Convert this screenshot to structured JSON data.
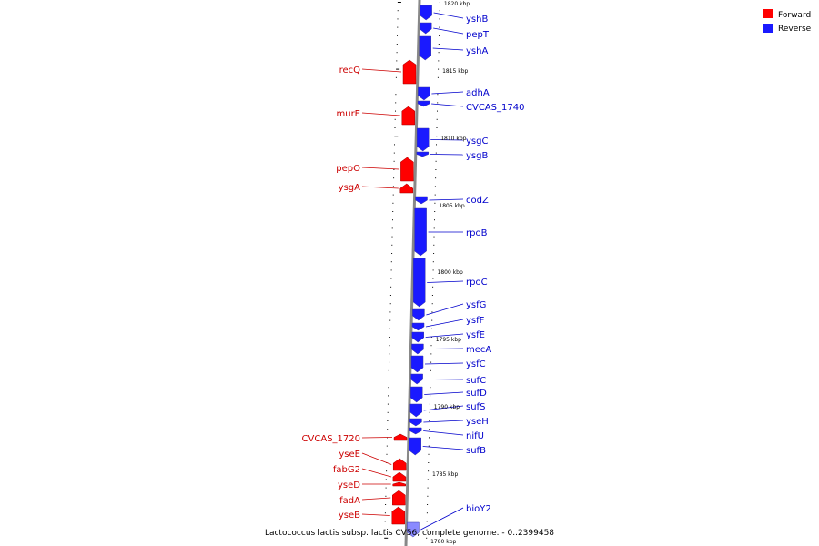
{
  "caption": "Lactococcus lactis subsp. lactis CV56, complete genome. - 0..2399458",
  "colors": {
    "forward": "#ff0000",
    "reverse": "#1a1aff",
    "forward_label": "#cc0000",
    "reverse_label": "#0000cc",
    "backbone": "#888888"
  },
  "legend": [
    {
      "name": "Forward",
      "color": "#ff0000"
    },
    {
      "name": "Reverse",
      "color": "#1a1aff"
    }
  ],
  "kbp_marks": [
    "1820 kbp",
    "1815 kbp",
    "1810 kbp",
    "1805 kbp",
    "1800 kbp",
    "1795 kbp",
    "1790 kbp",
    "1785 kbp",
    "1780 kbp"
  ],
  "reverse_genes": [
    "yshB",
    "pepT",
    "yshA",
    "adhA",
    "CVCAS_1740",
    "ysgC",
    "ysgB",
    "codZ",
    "rpoB",
    "rpoC",
    "ysfG",
    "ysfF",
    "ysfE",
    "mecA",
    "ysfC",
    "sufC",
    "sufD",
    "sufS",
    "yseH",
    "nifU",
    "sufB",
    "bioY2"
  ],
  "forward_genes": [
    "recQ",
    "murE",
    "pepO",
    "ysgA",
    "CVCAS_1720",
    "yseE",
    "fabG2",
    "yseD",
    "fadA",
    "yseB"
  ]
}
